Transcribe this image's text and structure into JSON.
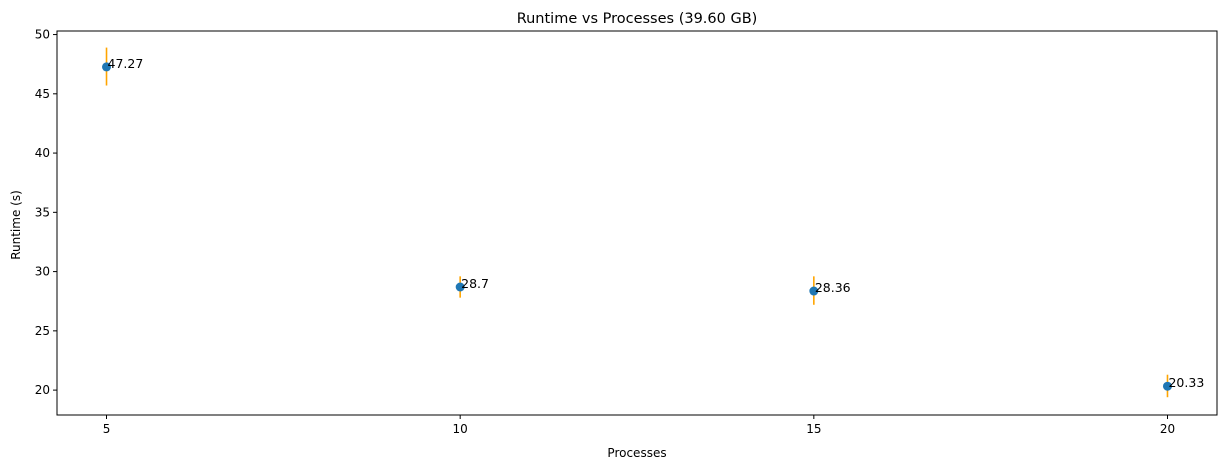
{
  "chart_data": {
    "type": "scatter",
    "title": "Runtime vs Processes (39.60 GB)",
    "xlabel": "Processes",
    "ylabel": "Runtime (s)",
    "x": [
      5,
      10,
      15,
      20
    ],
    "y": [
      47.27,
      28.7,
      28.36,
      20.33
    ],
    "error_low": [
      45.7,
      27.8,
      27.2,
      19.4
    ],
    "error_high": [
      48.9,
      29.6,
      29.6,
      21.3
    ],
    "data_labels": [
      "47.27",
      "28.7",
      "28.36",
      "20.33"
    ],
    "xticks": [
      5,
      10,
      15,
      20
    ],
    "xtick_labels": [
      "5",
      "10",
      "15",
      "20"
    ],
    "yticks": [
      20,
      25,
      30,
      35,
      40,
      45,
      50
    ],
    "ytick_labels": [
      "20",
      "25",
      "30",
      "35",
      "40",
      "45",
      "50"
    ],
    "xlim": [
      4.3,
      20.7
    ],
    "ylim": [
      17.9,
      50.3
    ],
    "grid": false,
    "marker_color": "#1f77b4",
    "errorbar_color": "#ffa500"
  }
}
